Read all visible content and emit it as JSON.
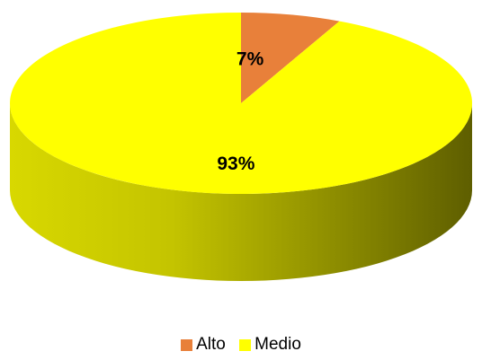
{
  "chart_data": {
    "type": "pie",
    "three_d": true,
    "start_angle": "12 o'clock",
    "direction": "clockwise",
    "slices": [
      {
        "label": "Alto",
        "value": 7,
        "data_label": "7%",
        "color": "#E8803A"
      },
      {
        "label": "Medio",
        "value": 93,
        "data_label": "93%",
        "color": "#FFFF00"
      }
    ],
    "legend": {
      "placement": "bottom-center",
      "entries": [
        "Alto",
        "Medio"
      ]
    }
  }
}
